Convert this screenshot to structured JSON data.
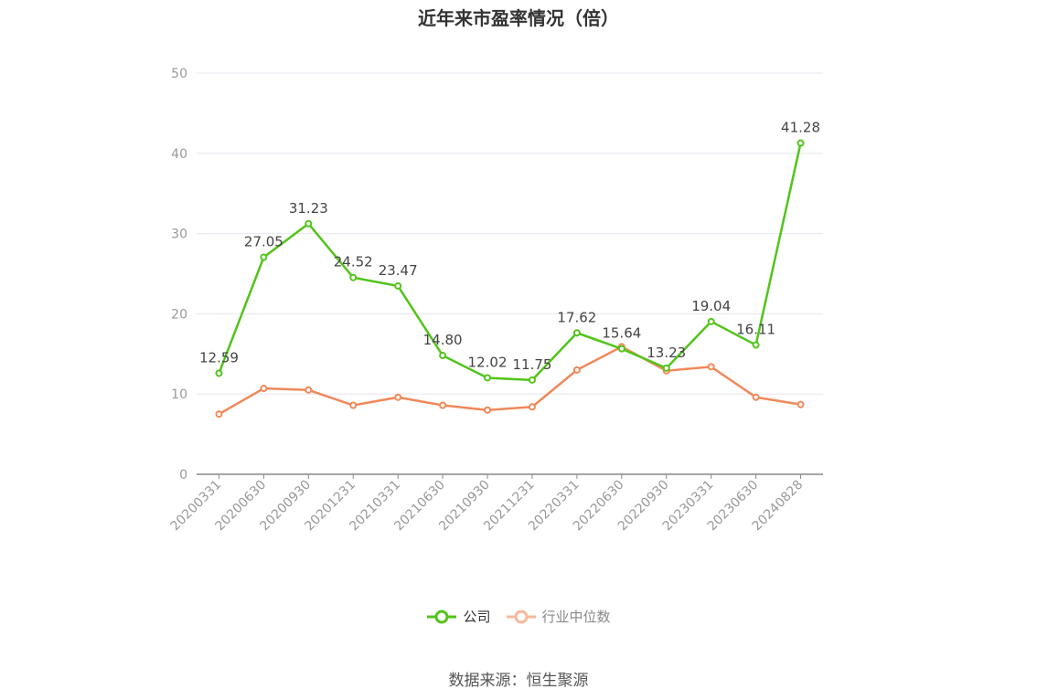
{
  "chart_data": {
    "type": "line",
    "title": "近年来市盈率情况（倍）",
    "categories": [
      "20200331",
      "20200630",
      "20200930",
      "20201231",
      "20210331",
      "20210630",
      "20210930",
      "20211231",
      "20220331",
      "20220630",
      "20220930",
      "20230331",
      "20230630",
      "20240828"
    ],
    "ylim": [
      0,
      50
    ],
    "yticks": [
      0,
      10,
      20,
      30,
      40,
      50
    ],
    "grid": true,
    "legend_position": "bottom",
    "series": [
      {
        "name": "公司",
        "color": "#52c41a",
        "values": [
          12.59,
          27.05,
          31.23,
          24.52,
          23.47,
          14.8,
          12.02,
          11.75,
          17.62,
          15.64,
          13.23,
          19.04,
          16.11,
          41.28
        ],
        "labels": [
          "12.59",
          "27.05",
          "31.23",
          "24.52",
          "23.47",
          "14.80",
          "12.02",
          "11.75",
          "17.62",
          "15.64",
          "13.23",
          "19.04",
          "16.11",
          "41.28"
        ]
      },
      {
        "name": "行业中位数",
        "color": "#f0885a",
        "legend_color": "#f7b89a",
        "values": [
          7.5,
          10.7,
          10.5,
          8.6,
          9.6,
          8.6,
          8.0,
          8.4,
          13.0,
          15.9,
          12.9,
          13.4,
          9.6,
          8.7
        ]
      }
    ]
  },
  "source": "数据来源：恒生聚源"
}
